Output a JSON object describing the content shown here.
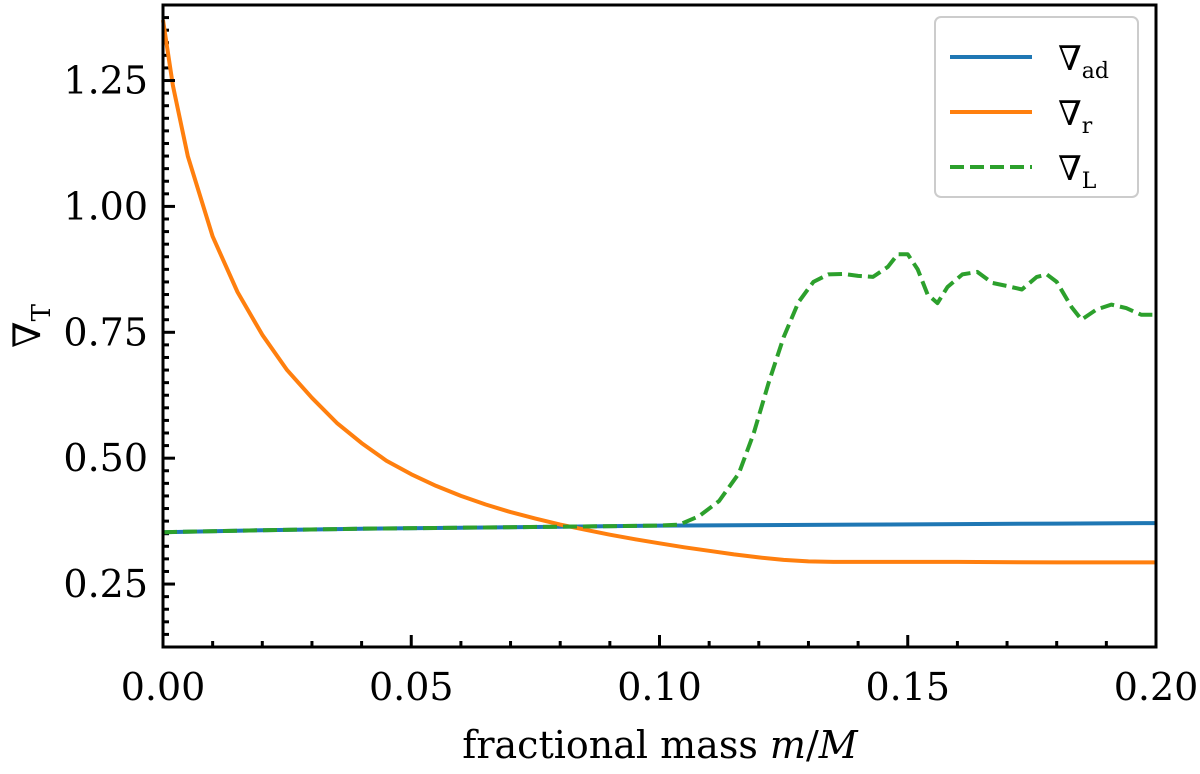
{
  "chart_data": {
    "type": "line",
    "xlabel": "fractional mass m/M",
    "ylabel": "∇T",
    "xlim": [
      0.0,
      0.2
    ],
    "ylim": [
      0.125,
      1.4
    ],
    "grid": false,
    "legend_position": "top-right",
    "x_ticks": [
      "0.00",
      "0.05",
      "0.10",
      "0.15",
      "0.20"
    ],
    "y_ticks": [
      "0.25",
      "0.50",
      "0.75",
      "1.00",
      "1.25"
    ],
    "series": [
      {
        "name": "∇ad",
        "color": "#1f77b4",
        "style": "solid",
        "points": [
          [
            0.0,
            0.353
          ],
          [
            0.02,
            0.357
          ],
          [
            0.04,
            0.36
          ],
          [
            0.06,
            0.362
          ],
          [
            0.08,
            0.364
          ],
          [
            0.1,
            0.366
          ],
          [
            0.12,
            0.367
          ],
          [
            0.14,
            0.368
          ],
          [
            0.16,
            0.369
          ],
          [
            0.18,
            0.37
          ],
          [
            0.2,
            0.371
          ]
        ]
      },
      {
        "name": "∇r",
        "color": "#ff7f0e",
        "style": "solid",
        "points": [
          [
            0.0,
            1.37
          ],
          [
            0.002,
            1.24
          ],
          [
            0.005,
            1.1
          ],
          [
            0.01,
            0.94
          ],
          [
            0.015,
            0.83
          ],
          [
            0.02,
            0.745
          ],
          [
            0.025,
            0.675
          ],
          [
            0.03,
            0.62
          ],
          [
            0.035,
            0.57
          ],
          [
            0.04,
            0.53
          ],
          [
            0.045,
            0.495
          ],
          [
            0.05,
            0.468
          ],
          [
            0.055,
            0.445
          ],
          [
            0.06,
            0.425
          ],
          [
            0.065,
            0.408
          ],
          [
            0.07,
            0.393
          ],
          [
            0.075,
            0.38
          ],
          [
            0.08,
            0.368
          ],
          [
            0.085,
            0.358
          ],
          [
            0.09,
            0.348
          ],
          [
            0.095,
            0.339
          ],
          [
            0.1,
            0.331
          ],
          [
            0.105,
            0.323
          ],
          [
            0.11,
            0.316
          ],
          [
            0.115,
            0.309
          ],
          [
            0.12,
            0.303
          ],
          [
            0.125,
            0.298
          ],
          [
            0.13,
            0.295
          ],
          [
            0.135,
            0.294
          ],
          [
            0.14,
            0.294
          ],
          [
            0.16,
            0.294
          ],
          [
            0.18,
            0.293
          ],
          [
            0.2,
            0.293
          ]
        ]
      },
      {
        "name": "∇L",
        "color": "#2ca02c",
        "style": "dashed",
        "points": [
          [
            0.0,
            0.353
          ],
          [
            0.02,
            0.357
          ],
          [
            0.04,
            0.36
          ],
          [
            0.06,
            0.362
          ],
          [
            0.08,
            0.364
          ],
          [
            0.1,
            0.366
          ],
          [
            0.104,
            0.368
          ],
          [
            0.108,
            0.385
          ],
          [
            0.112,
            0.415
          ],
          [
            0.116,
            0.47
          ],
          [
            0.119,
            0.55
          ],
          [
            0.122,
            0.65
          ],
          [
            0.125,
            0.74
          ],
          [
            0.128,
            0.81
          ],
          [
            0.131,
            0.85
          ],
          [
            0.134,
            0.865
          ],
          [
            0.137,
            0.866
          ],
          [
            0.14,
            0.862
          ],
          [
            0.143,
            0.86
          ],
          [
            0.146,
            0.88
          ],
          [
            0.148,
            0.905
          ],
          [
            0.15,
            0.905
          ],
          [
            0.152,
            0.875
          ],
          [
            0.154,
            0.825
          ],
          [
            0.156,
            0.808
          ],
          [
            0.158,
            0.84
          ],
          [
            0.161,
            0.865
          ],
          [
            0.164,
            0.87
          ],
          [
            0.167,
            0.848
          ],
          [
            0.17,
            0.842
          ],
          [
            0.173,
            0.835
          ],
          [
            0.176,
            0.86
          ],
          [
            0.178,
            0.865
          ],
          [
            0.18,
            0.85
          ],
          [
            0.183,
            0.8
          ],
          [
            0.185,
            0.775
          ],
          [
            0.188,
            0.795
          ],
          [
            0.191,
            0.805
          ],
          [
            0.194,
            0.798
          ],
          [
            0.197,
            0.785
          ],
          [
            0.2,
            0.785
          ]
        ]
      }
    ]
  }
}
